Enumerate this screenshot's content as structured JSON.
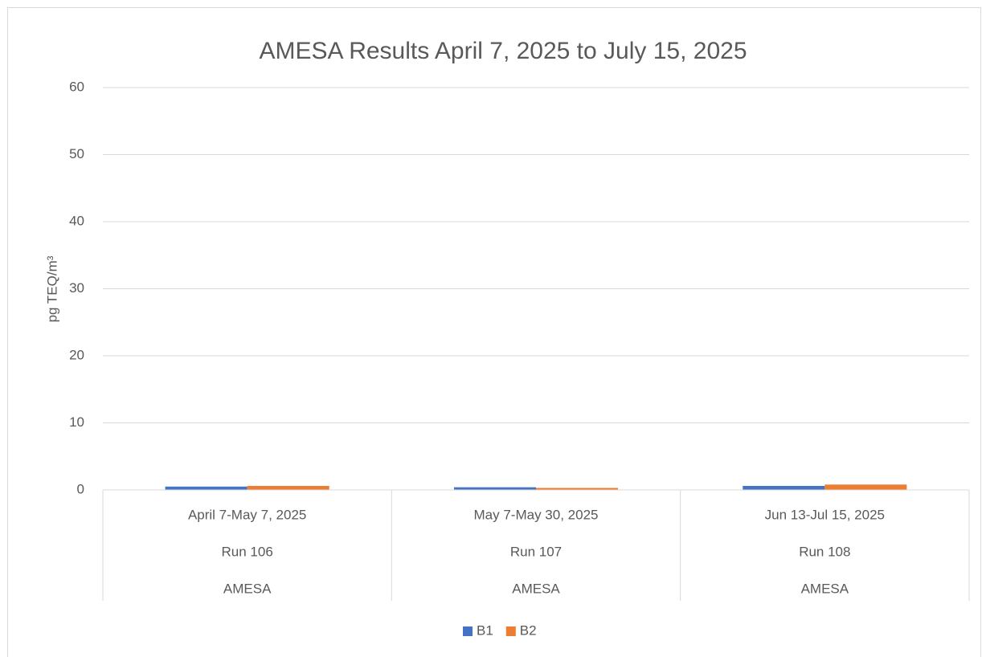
{
  "chart_data": {
    "type": "bar",
    "title": "AMESA Results April 7, 2025 to July 15, 2025",
    "y_label": "pg TEQ/m³",
    "categories": [
      "April 7-May 7, 2025",
      "May 7-May 30, 2025",
      "Jun 13-Jul 15, 2025"
    ],
    "category_levels": [
      [
        "Run 106",
        "Run 107",
        "Run 108"
      ],
      [
        "AMESA",
        "AMESA",
        "AMESA"
      ]
    ],
    "series": [
      {
        "name": "B1",
        "color": "#4472c4",
        "values": [
          0.5,
          0.4,
          0.6
        ]
      },
      {
        "name": "B2",
        "color": "#ed7d31",
        "values": [
          0.6,
          0.3,
          0.8
        ]
      }
    ],
    "ylim": [
      0,
      60
    ],
    "yticks": [
      0,
      10,
      20,
      30,
      40,
      50,
      60
    ],
    "grid": true,
    "legend": "bottom"
  }
}
